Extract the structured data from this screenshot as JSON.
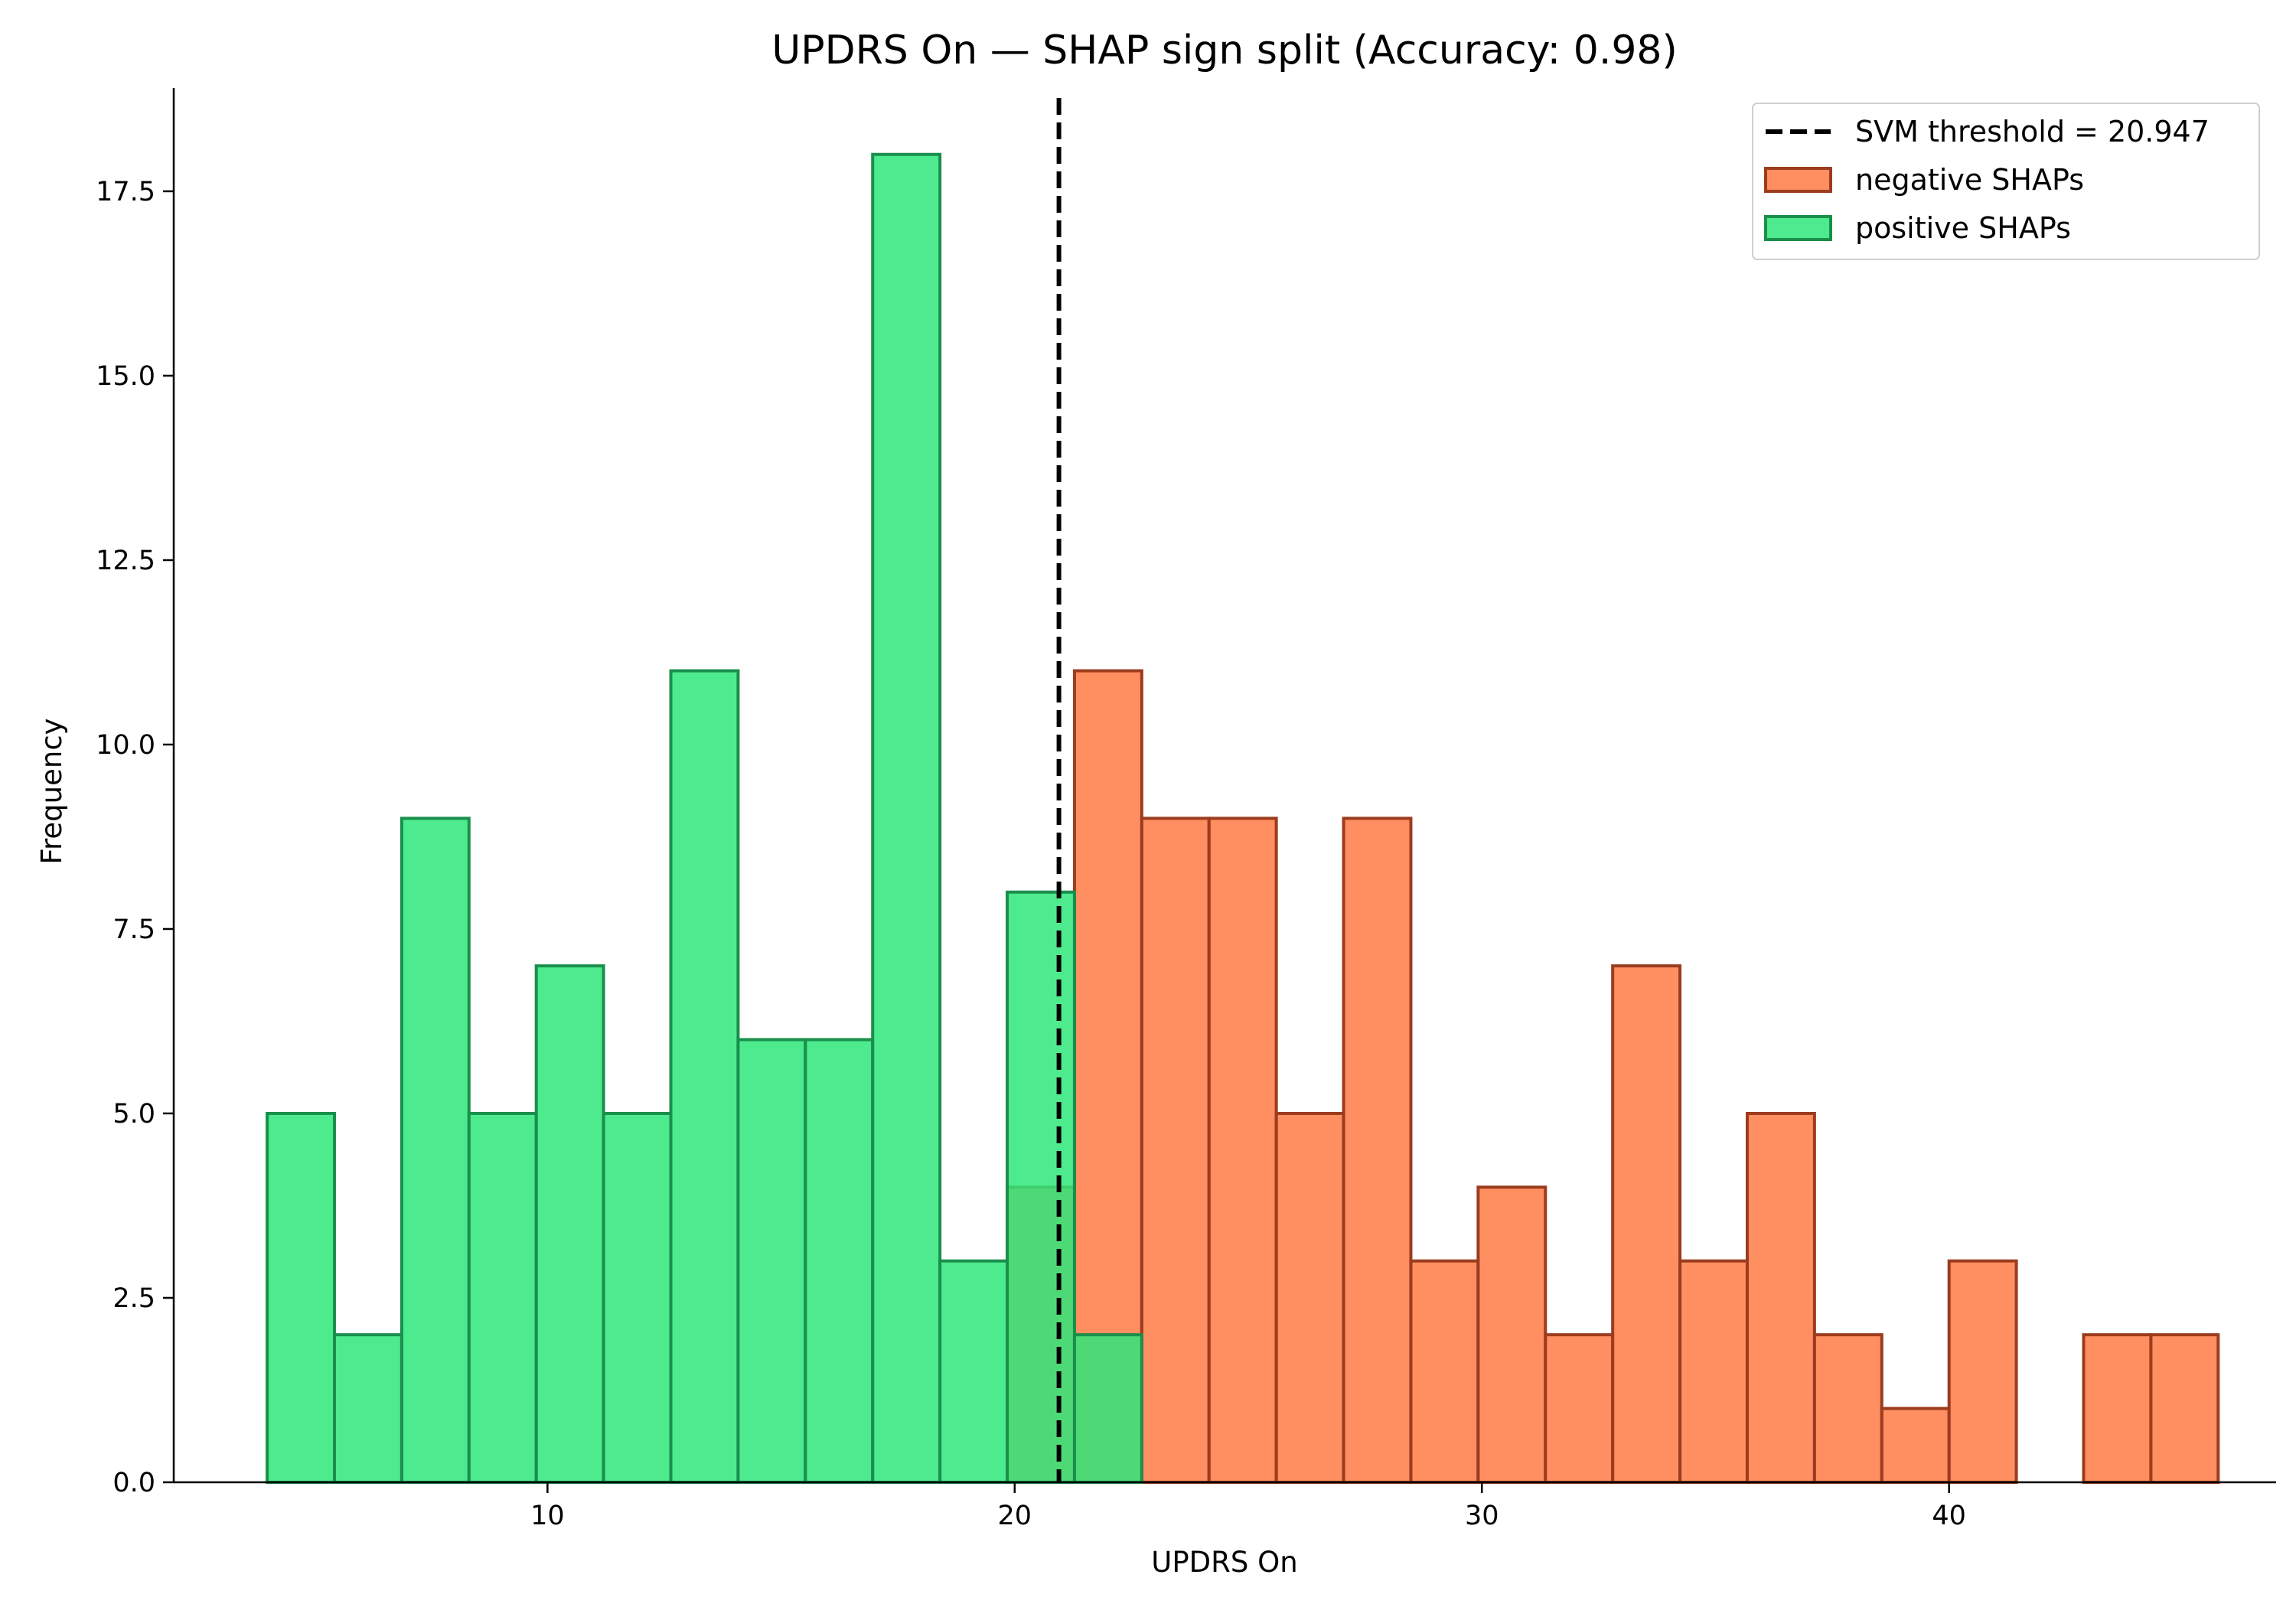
{
  "chart_data": {
    "type": "bar",
    "title": "UPDRS On — SHAP sign split (Accuracy: 0.98)",
    "xlabel": "UPDRS On",
    "ylabel": "Frequency",
    "xlim": [
      2.0,
      47.0
    ],
    "ylim": [
      0,
      18.9
    ],
    "xticks": [
      10,
      20,
      30,
      40
    ],
    "yticks": [
      0.0,
      2.5,
      5.0,
      7.5,
      10.0,
      12.5,
      15.0,
      17.5
    ],
    "threshold": {
      "label": "SVM threshold = 20.947",
      "value": 20.947
    },
    "legend_position": "top-right",
    "grid": false,
    "series": [
      {
        "name": "positive SHAPs",
        "color": "#2ee87a",
        "edge": "#1a8f4c",
        "bin_edges": [
          4.0,
          5.44,
          6.88,
          8.32,
          9.76,
          11.2,
          12.64,
          14.08,
          15.52,
          16.96,
          18.4,
          19.84,
          21.28,
          22.72
        ],
        "values": [
          5,
          2,
          9,
          5,
          7,
          5,
          11,
          6,
          6,
          18,
          3,
          8,
          2
        ]
      },
      {
        "name": "negative SHAPs",
        "color": "#ff7a45",
        "edge": "#9c3c1e",
        "bin_edges": [
          19.84,
          21.28,
          22.72,
          24.16,
          25.6,
          27.04,
          28.48,
          29.92,
          31.36,
          32.8,
          34.24,
          35.68,
          37.12,
          38.56,
          40.0,
          41.44,
          42.88,
          44.32,
          45.76
        ],
        "values": [
          4,
          11,
          9,
          9,
          5,
          9,
          3,
          4,
          2,
          7,
          3,
          5,
          2,
          1,
          3,
          0,
          2,
          2
        ]
      }
    ]
  }
}
